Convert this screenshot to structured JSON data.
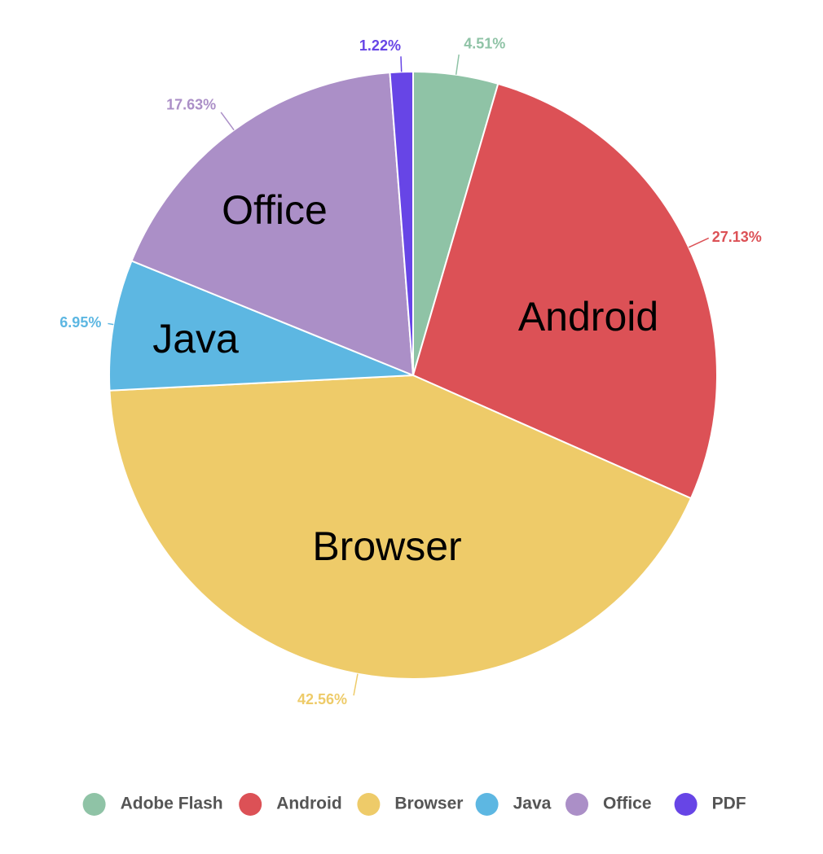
{
  "chart_data": {
    "type": "pie",
    "title": "",
    "slices": [
      {
        "name": "Adobe Flash",
        "value": 4.51,
        "label": "4.51%",
        "color": "#8fc3a6",
        "inner_label": ""
      },
      {
        "name": "Android",
        "value": 27.13,
        "label": "27.13%",
        "color": "#dc5156",
        "inner_label": "Android"
      },
      {
        "name": "Browser",
        "value": 42.56,
        "label": "42.56%",
        "color": "#eecb69",
        "inner_label": "Browser"
      },
      {
        "name": "Java",
        "value": 6.95,
        "label": "6.95%",
        "color": "#5db7e2",
        "inner_label": "Java"
      },
      {
        "name": "Office",
        "value": 17.63,
        "label": "17.63%",
        "color": "#ab8fc7",
        "inner_label": "Office"
      },
      {
        "name": "PDF",
        "value": 1.22,
        "label": "1.22%",
        "color": "#6745e6",
        "inner_label": ""
      }
    ],
    "legend": {
      "placement": "bottom",
      "items": [
        "Adobe Flash",
        "Android",
        "Browser",
        "Java",
        "Office",
        "PDF"
      ]
    }
  }
}
